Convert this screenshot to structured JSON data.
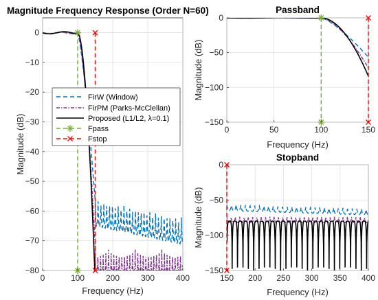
{
  "chart_data": [
    {
      "id": "main",
      "type": "line",
      "title": "Magnitude Frequency Response (Order N=60)",
      "xlabel": "Frequency (Hz)",
      "ylabel": "Magnitude (dB)",
      "xlim": [
        0,
        400
      ],
      "ylim": [
        -80,
        5
      ],
      "xticks": [
        0,
        100,
        200,
        300,
        400
      ],
      "yticks": [
        0,
        -10,
        -20,
        -30,
        -40,
        -50,
        -60,
        -70,
        -80
      ],
      "grid": true,
      "legend_position": "center-left",
      "legend": [
        {
          "label": "FirW (Window)",
          "series": "firw"
        },
        {
          "label": "FirPM (Parks-McClellan)",
          "series": "firpm"
        },
        {
          "label": "Proposed (L1/L2, λ=0.1)",
          "series": "proposed"
        },
        {
          "label": "Fpass",
          "series": "fpass"
        },
        {
          "label": "Fstop",
          "series": "fstop"
        }
      ],
      "marker_lines": [
        {
          "name": "Fpass",
          "x": 100,
          "y": [
            0,
            -80
          ],
          "color": "#77ac30",
          "marker": "asterisk"
        },
        {
          "name": "Fstop",
          "x": 150,
          "y": [
            0,
            -80
          ],
          "color": "#ff0000",
          "marker": "x"
        }
      ]
    },
    {
      "id": "passband",
      "type": "line",
      "title": "Passband",
      "xlabel": "Frequency (Hz)",
      "ylabel": "Magnitude (dB)",
      "xlim": [
        0,
        150
      ],
      "ylim": [
        -150,
        0
      ],
      "xticks": [
        0,
        50,
        100,
        150
      ],
      "yticks": [
        0,
        -50,
        -100,
        -150
      ],
      "grid": true,
      "marker_lines": [
        {
          "name": "Fpass",
          "x": 100,
          "y": [
            0,
            -150
          ],
          "color": "#77ac30",
          "marker": "asterisk"
        },
        {
          "name": "Fstop",
          "x": 150,
          "y": [
            0,
            -150
          ],
          "color": "#ff0000",
          "marker": "x"
        }
      ]
    },
    {
      "id": "stopband",
      "type": "line",
      "title": "Stopband",
      "xlabel": "Frequency (Hz)",
      "ylabel": "Magnitude (dB)",
      "xlim": [
        150,
        400
      ],
      "ylim": [
        -150,
        0
      ],
      "xticks": [
        150,
        200,
        250,
        300,
        350,
        400
      ],
      "yticks": [
        0,
        -50,
        -100,
        -150
      ],
      "grid": true,
      "marker_lines": [
        {
          "name": "Fstop",
          "x": 150,
          "y": [
            0,
            -150
          ],
          "color": "#ff0000",
          "marker": "x"
        }
      ]
    }
  ],
  "series_styles": {
    "firw": {
      "color": "#0072bd",
      "dash": "6,4",
      "width": 1.4
    },
    "firpm": {
      "color": "#7e2f8e",
      "dash": "5,2,1.5,2",
      "width": 1.4
    },
    "proposed": {
      "color": "#000000",
      "dash": "",
      "width": 1.6
    },
    "fpass": {
      "color": "#77ac30",
      "dash": "6,4",
      "width": 1.4
    },
    "fstop": {
      "color": "#ff0000",
      "dash": "6,4",
      "width": 1.4
    }
  }
}
